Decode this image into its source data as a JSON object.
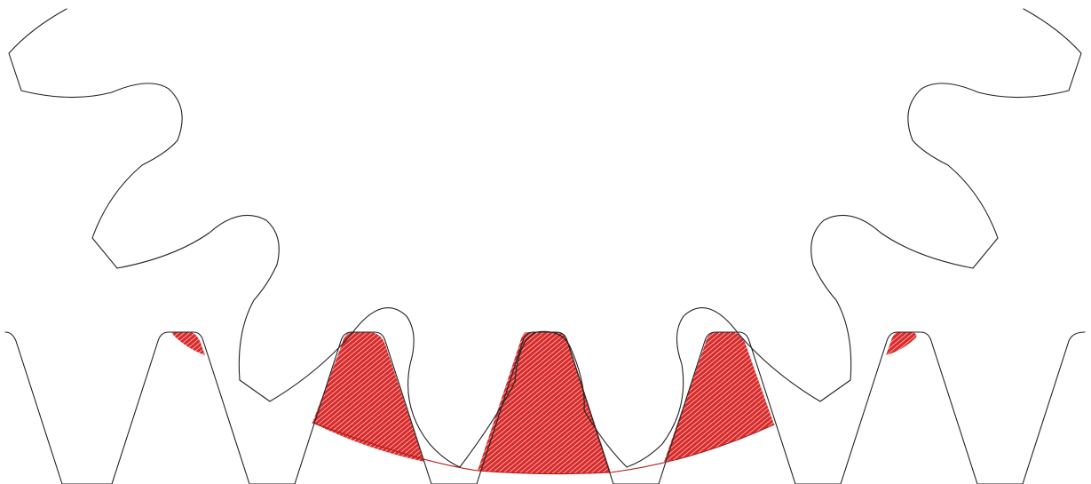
{
  "figure": {
    "background_color": "#ffffff",
    "outline_color": "#222222",
    "overlap_color": "#d92b2b",
    "overlap_stroke_color": "#b01818",
    "overlap_hatch": "diagonal",
    "components": [
      "pinion-gear",
      "rack"
    ],
    "pinion_visible_teeth": 7,
    "rack_visible_teeth": 6,
    "overlap_region_count": 5
  }
}
